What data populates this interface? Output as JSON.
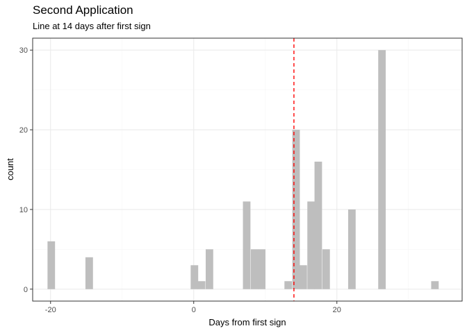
{
  "chart_data": {
    "type": "bar",
    "title": "Second Application",
    "subtitle": "Line at 14 days after first sign",
    "xlabel": "Days from first sign",
    "ylabel": "count",
    "xlim": [
      -22.5,
      37.5
    ],
    "ylim": [
      -1.5,
      31.5
    ],
    "x_ticks": [
      -20,
      0,
      20
    ],
    "x_tick_labels": [
      "-20",
      "0",
      "20"
    ],
    "y_ticks": [
      0,
      10,
      20,
      30
    ],
    "y_tick_labels": [
      "0",
      "10",
      "20",
      "30"
    ],
    "grid": true,
    "bin_width": 1.05,
    "bars": [
      {
        "x": -19.9,
        "count": 6
      },
      {
        "x": -14.6,
        "count": 4
      },
      {
        "x": 0.1,
        "count": 3
      },
      {
        "x": 1.1,
        "count": 1
      },
      {
        "x": 2.2,
        "count": 5
      },
      {
        "x": 7.4,
        "count": 11
      },
      {
        "x": 8.5,
        "count": 5
      },
      {
        "x": 9.5,
        "count": 5
      },
      {
        "x": 13.2,
        "count": 1
      },
      {
        "x": 14.3,
        "count": 20
      },
      {
        "x": 15.3,
        "count": 3
      },
      {
        "x": 16.4,
        "count": 11
      },
      {
        "x": 17.4,
        "count": 16
      },
      {
        "x": 18.5,
        "count": 5
      },
      {
        "x": 22.1,
        "count": 10
      },
      {
        "x": 26.3,
        "count": 30
      },
      {
        "x": 33.7,
        "count": 1
      }
    ],
    "vline": {
      "x": 14,
      "color": "#ff0000",
      "style": "dashed"
    },
    "colors": {
      "bar_fill": "#bebebe",
      "panel_border": "#333333",
      "grid_major": "#ebebeb",
      "grid_minor": "#f5f5f5"
    }
  }
}
